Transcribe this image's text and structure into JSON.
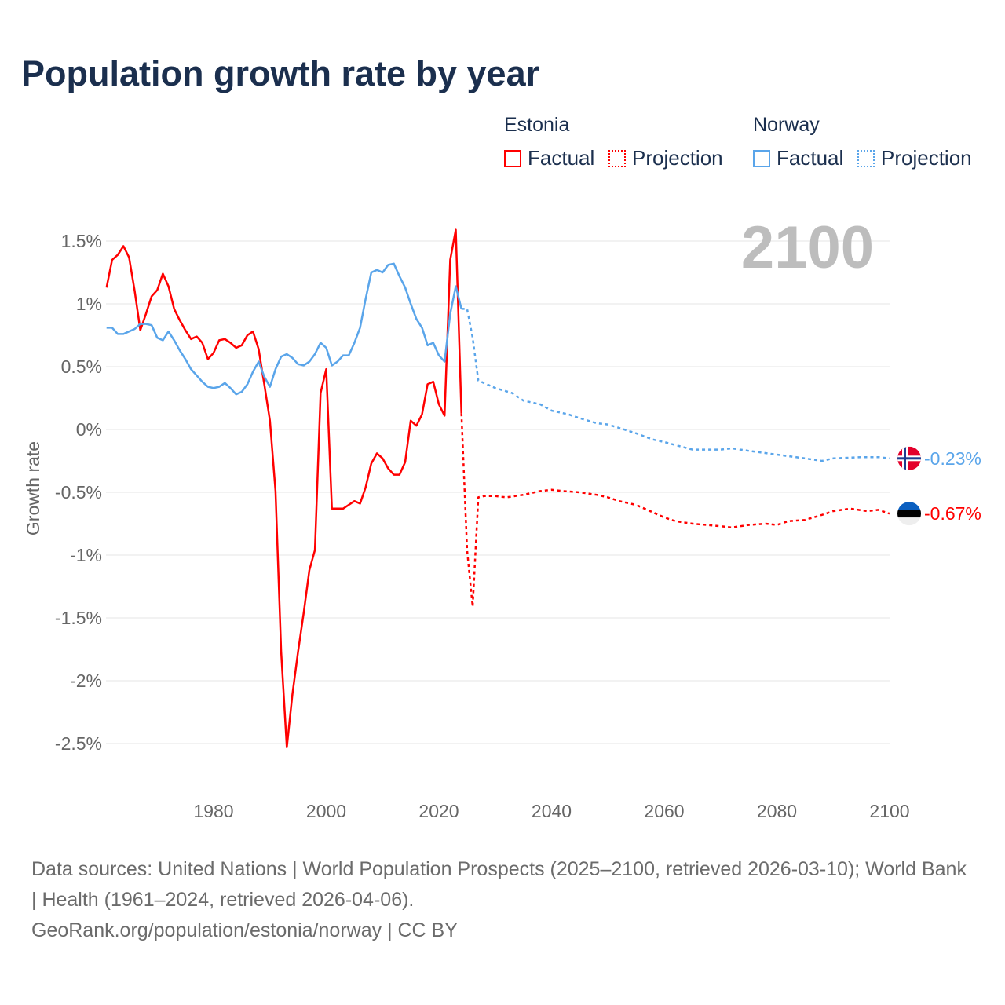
{
  "title": "Population growth rate by year",
  "legend": {
    "estonia": "Estonia",
    "norway": "Norway",
    "factual": "Factual",
    "projection": "Projection"
  },
  "current_year": "2100",
  "end_labels": {
    "norway": "-0.23%",
    "estonia": "-0.67%"
  },
  "footer": {
    "line1": "Data sources: United Nations | World Population Prospects (2025–2100, retrieved 2026-03-10); World Bank | Health (1961–2024, retrieved 2026-04-06).",
    "line2": "GeoRank.org/population/estonia/norway | CC BY"
  },
  "colors": {
    "estonia": "#ff0000",
    "norway": "#5aa5ea"
  },
  "chart_data": {
    "type": "line",
    "ylabel": "Growth rate",
    "xlim": [
      1961,
      2100
    ],
    "ylim": [
      -2.8,
      1.6
    ],
    "x_ticks": [
      1980,
      2000,
      2020,
      2040,
      2060,
      2080,
      2100
    ],
    "y_ticks": [
      {
        "v": 1.5,
        "l": "1.5%"
      },
      {
        "v": 1,
        "l": "1%"
      },
      {
        "v": 0.5,
        "l": "0.5%"
      },
      {
        "v": 0,
        "l": "0%"
      },
      {
        "v": -0.5,
        "l": "-0.5%"
      },
      {
        "v": -1,
        "l": "-1%"
      },
      {
        "v": -1.5,
        "l": "-1.5%"
      },
      {
        "v": -2,
        "l": "-2%"
      },
      {
        "v": -2.5,
        "l": "-2.5%"
      }
    ],
    "series": [
      {
        "name": "Estonia",
        "type": "Factual",
        "start": 1961,
        "values": [
          1.13,
          1.35,
          1.39,
          1.46,
          1.37,
          1.1,
          0.79,
          0.92,
          1.06,
          1.11,
          1.24,
          1.14,
          0.96,
          0.87,
          0.79,
          0.72,
          0.74,
          0.69,
          0.56,
          0.61,
          0.71,
          0.72,
          0.69,
          0.65,
          0.67,
          0.75,
          0.78,
          0.64,
          0.36,
          0.07,
          -0.49,
          -1.77,
          -2.53,
          -2.11,
          -1.77,
          -1.46,
          -1.12,
          -0.96,
          0.29,
          0.48,
          -0.63,
          -0.63,
          -0.63,
          -0.6,
          -0.57,
          -0.59,
          -0.46,
          -0.27,
          -0.19,
          -0.23,
          -0.31,
          -0.36,
          -0.36,
          -0.26,
          0.07,
          0.03,
          0.12,
          0.36,
          0.38,
          0.2,
          0.11,
          1.35,
          1.59,
          0.13
        ]
      },
      {
        "name": "Estonia",
        "type": "Projection",
        "points": [
          [
            2024,
            0.13
          ],
          [
            2025,
            -0.96
          ],
          [
            2026,
            -1.41
          ],
          [
            2027,
            -0.54
          ],
          [
            2028,
            -0.53
          ],
          [
            2030,
            -0.53
          ],
          [
            2032,
            -0.54
          ],
          [
            2035,
            -0.52
          ],
          [
            2038,
            -0.49
          ],
          [
            2040,
            -0.48
          ],
          [
            2042,
            -0.49
          ],
          [
            2045,
            -0.5
          ],
          [
            2048,
            -0.52
          ],
          [
            2050,
            -0.54
          ],
          [
            2052,
            -0.57
          ],
          [
            2055,
            -0.6
          ],
          [
            2058,
            -0.66
          ],
          [
            2060,
            -0.7
          ],
          [
            2062,
            -0.73
          ],
          [
            2065,
            -0.75
          ],
          [
            2070,
            -0.77
          ],
          [
            2072,
            -0.78
          ],
          [
            2075,
            -0.76
          ],
          [
            2078,
            -0.75
          ],
          [
            2080,
            -0.76
          ],
          [
            2082,
            -0.73
          ],
          [
            2085,
            -0.72
          ],
          [
            2088,
            -0.68
          ],
          [
            2090,
            -0.65
          ],
          [
            2093,
            -0.63
          ],
          [
            2096,
            -0.65
          ],
          [
            2098,
            -0.64
          ],
          [
            2100,
            -0.67
          ]
        ]
      },
      {
        "name": "Norway",
        "type": "Factual",
        "start": 1961,
        "values": [
          0.81,
          0.81,
          0.76,
          0.76,
          0.78,
          0.8,
          0.84,
          0.84,
          0.83,
          0.73,
          0.71,
          0.78,
          0.71,
          0.63,
          0.56,
          0.48,
          0.43,
          0.38,
          0.34,
          0.33,
          0.34,
          0.37,
          0.33,
          0.28,
          0.3,
          0.36,
          0.46,
          0.54,
          0.42,
          0.34,
          0.48,
          0.58,
          0.6,
          0.57,
          0.52,
          0.51,
          0.54,
          0.6,
          0.69,
          0.65,
          0.51,
          0.54,
          0.59,
          0.59,
          0.69,
          0.81,
          1.04,
          1.25,
          1.27,
          1.25,
          1.31,
          1.32,
          1.22,
          1.13,
          1.0,
          0.88,
          0.81,
          0.67,
          0.69,
          0.59,
          0.54,
          0.92,
          1.14,
          0.96
        ]
      },
      {
        "name": "Norway",
        "type": "Projection",
        "points": [
          [
            2024,
            0.96
          ],
          [
            2025,
            0.96
          ],
          [
            2026,
            0.73
          ],
          [
            2027,
            0.39
          ],
          [
            2028,
            0.37
          ],
          [
            2030,
            0.33
          ],
          [
            2033,
            0.29
          ],
          [
            2035,
            0.23
          ],
          [
            2038,
            0.2
          ],
          [
            2040,
            0.15
          ],
          [
            2043,
            0.12
          ],
          [
            2045,
            0.09
          ],
          [
            2048,
            0.05
          ],
          [
            2050,
            0.04
          ],
          [
            2055,
            -0.03
          ],
          [
            2058,
            -0.08
          ],
          [
            2060,
            -0.1
          ],
          [
            2065,
            -0.16
          ],
          [
            2070,
            -0.16
          ],
          [
            2072,
            -0.15
          ],
          [
            2075,
            -0.17
          ],
          [
            2080,
            -0.2
          ],
          [
            2085,
            -0.23
          ],
          [
            2088,
            -0.25
          ],
          [
            2090,
            -0.23
          ],
          [
            2095,
            -0.22
          ],
          [
            2098,
            -0.22
          ],
          [
            2100,
            -0.23
          ]
        ]
      }
    ]
  }
}
